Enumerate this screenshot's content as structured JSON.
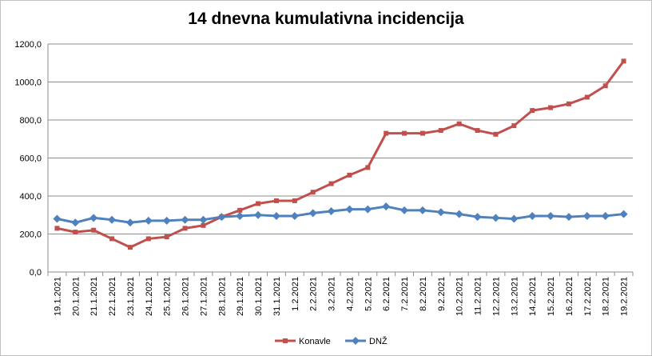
{
  "chart_data": {
    "type": "line",
    "title": "14 dnevna kumulativna incidencija",
    "xlabel": "",
    "ylabel": "",
    "ylim": [
      0,
      1200
    ],
    "yticks": [
      "0,0",
      "200,0",
      "400,0",
      "600,0",
      "800,0",
      "1000,0",
      "1200,0"
    ],
    "grid": true,
    "legend_position": "bottom",
    "categories": [
      "19.1.2021",
      "20.1.2021",
      "21.1.2021",
      "22.1.2021",
      "23.1.2021",
      "24.1.2021",
      "25.1.2021",
      "26.1.2021",
      "27.1.2021",
      "28.1.2021",
      "29.1.2021",
      "30.1.2021",
      "31.1.2021",
      "1.2.2021",
      "2.2.2021",
      "3.2.2021",
      "4.2.2021",
      "5.2.2021",
      "6.2.2021",
      "7.2.2021",
      "8.2.2021",
      "9.2.2021",
      "10.2.2021",
      "11.2.2021",
      "12.2.2021",
      "13.2.2021",
      "14.2.2021",
      "15.2.2021",
      "16.2.2021",
      "17.2.2021",
      "18.2.2021",
      "19.2.2021"
    ],
    "series": [
      {
        "name": "Konavle",
        "color": "#c0504d",
        "marker": "square",
        "values": [
          230,
          210,
          220,
          175,
          130,
          175,
          185,
          230,
          245,
          290,
          325,
          360,
          375,
          375,
          420,
          465,
          510,
          550,
          730,
          730,
          730,
          745,
          780,
          745,
          725,
          770,
          850,
          865,
          885,
          920,
          980,
          1110
        ]
      },
      {
        "name": "DNŽ",
        "color": "#4f81bd",
        "marker": "diamond",
        "values": [
          280,
          260,
          285,
          275,
          260,
          270,
          270,
          275,
          275,
          290,
          295,
          300,
          295,
          295,
          310,
          320,
          330,
          330,
          345,
          325,
          325,
          315,
          305,
          290,
          285,
          280,
          295,
          295,
          290,
          295,
          295,
          305
        ]
      }
    ]
  }
}
